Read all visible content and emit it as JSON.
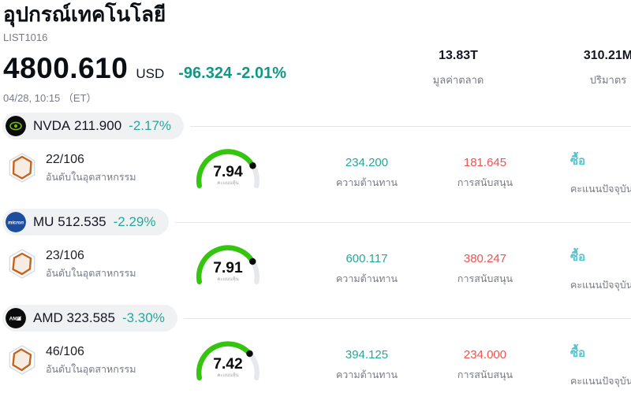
{
  "header": {
    "title": "อุปกรณ์เทคโนโลยี",
    "symbol": "LIST1016",
    "price": "4800.610",
    "currency": "USD",
    "change": "-96.324 -2.01%",
    "datetime": "04/28, 10:15 （ET）",
    "stats": [
      {
        "value": "13.83T",
        "label": "มูลค่าตลาด"
      },
      {
        "value": "310.21M",
        "label": "ปริมาตร"
      }
    ]
  },
  "labels": {
    "rank": "อันดับในอุตสาหกรรม",
    "score": "คะแนนหุ้น",
    "resistance": "ความต้านทาน",
    "support": "การสนับสนุน",
    "signal": "คะแนนปัจจุบัน"
  },
  "gauge": {
    "min": 0,
    "max": 10
  },
  "rows": [
    {
      "ticker": "NVDA",
      "price": "211.900",
      "change": "-2.17%",
      "logo": "nvidia-logo",
      "logo_text": "",
      "rank": "22/106",
      "score": 7.94,
      "score_display": "7.94",
      "resistance": "234.200",
      "support": "181.645",
      "signal": "ซื้อ"
    },
    {
      "ticker": "MU",
      "price": "512.535",
      "change": "-2.29%",
      "logo": "micron-logo",
      "logo_text": "micron",
      "rank": "23/106",
      "score": 7.91,
      "score_display": "7.91",
      "resistance": "600.117",
      "support": "380.247",
      "signal": "ซื้อ"
    },
    {
      "ticker": "AMD",
      "price": "323.585",
      "change": "-3.30%",
      "logo": "amd-logo",
      "logo_text": "AMD",
      "rank": "46/106",
      "score": 7.42,
      "score_display": "7.42",
      "resistance": "394.125",
      "support": "234.000",
      "signal": "ซื้อ"
    }
  ],
  "colors": {
    "header_change": "#0f9884",
    "row_change": "#2aa79a",
    "resistance": "#26a69a",
    "support": "#ef5350",
    "signal": "#4fc6d4",
    "gauge_green": "#34c50e",
    "gauge_track": "#e6e8ec",
    "pill_bg": "#f0f1f3"
  }
}
